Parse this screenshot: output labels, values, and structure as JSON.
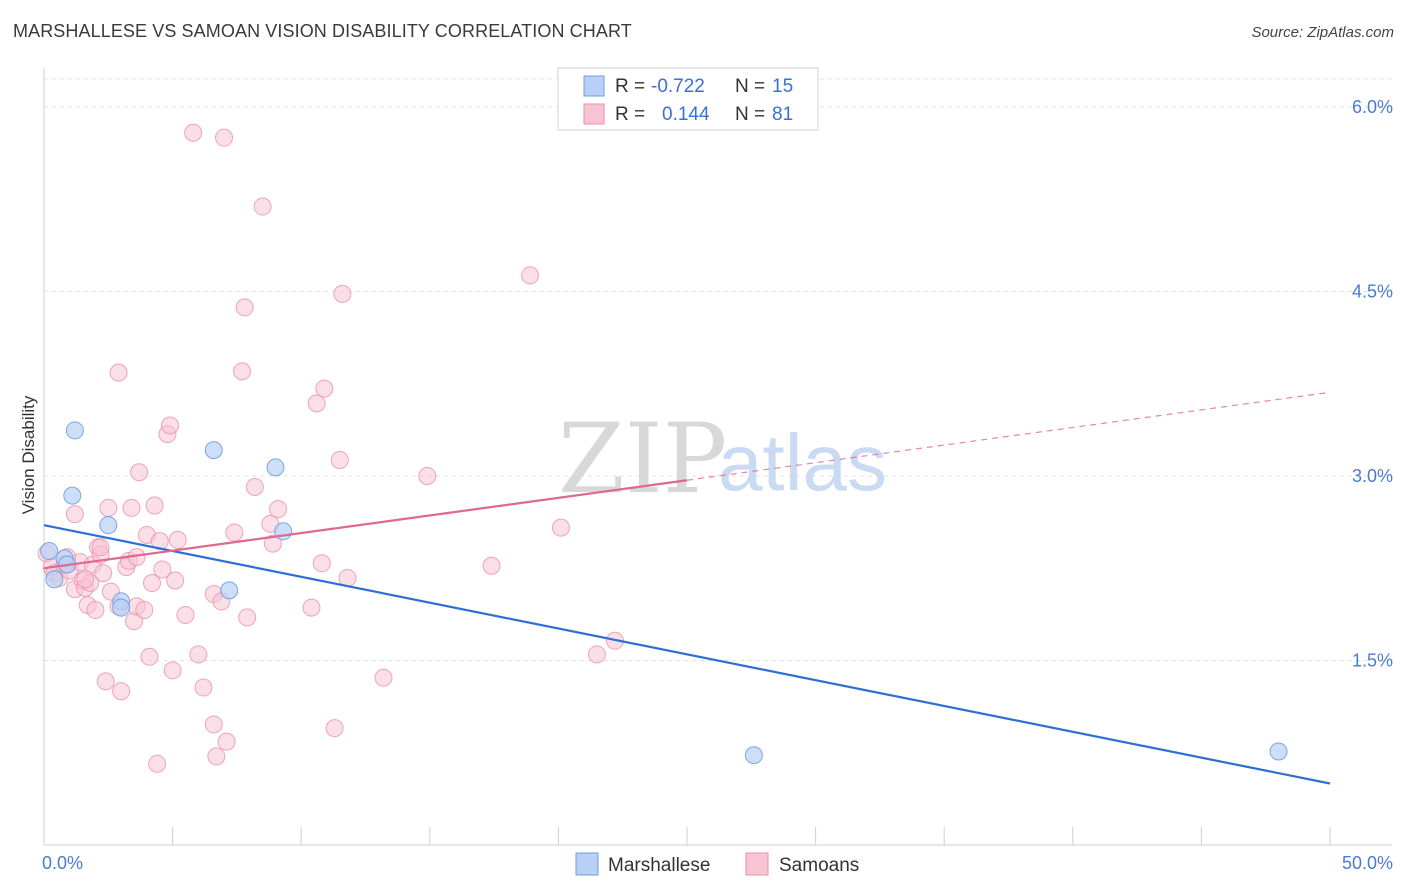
{
  "title": "MARSHALLESE VS SAMOAN VISION DISABILITY CORRELATION CHART",
  "source": "Source: ZipAtlas.com",
  "watermark": {
    "part1": "ZIP",
    "part2": "atlas"
  },
  "colors": {
    "marshallese_fill": "#b8d0f5",
    "marshallese_stroke": "#6f9ee0",
    "marshallese_line": "#2d6fd4",
    "samoan_fill": "#f8c4d4",
    "samoan_stroke": "#ea90ab",
    "samoan_line": "#e06792",
    "grid": "#e2e2e2",
    "tick_label": "#4a7bd0"
  },
  "legend": {
    "rows": [
      {
        "r_label": "R =",
        "r_value": "-0.722",
        "n_label": "N =",
        "n_value": "15"
      },
      {
        "r_label": "R =",
        "r_value": "0.144",
        "n_label": "N =",
        "n_value": "81"
      }
    ]
  },
  "bottom_legend": {
    "marshallese": "Marshallese",
    "samoans": "Samoans"
  },
  "chart_data": {
    "type": "scatter",
    "title": "MARSHALLESE VS SAMOAN VISION DISABILITY CORRELATION CHART",
    "xlabel": "",
    "ylabel": "Vision Disability",
    "xlim": [
      0,
      50
    ],
    "ylim": [
      0,
      6.3
    ],
    "x_tick_labels": [
      "0.0%",
      "50.0%"
    ],
    "y_ticks": [
      1.5,
      3.0,
      4.5,
      6.0
    ],
    "y_tick_labels": [
      "1.5%",
      "3.0%",
      "4.5%",
      "6.0%"
    ],
    "series": [
      {
        "name": "Marshallese",
        "r": -0.722,
        "n": 15,
        "points": [
          [
            0.2,
            2.39
          ],
          [
            0.4,
            2.16
          ],
          [
            0.8,
            2.33
          ],
          [
            0.9,
            2.28
          ],
          [
            1.1,
            2.84
          ],
          [
            1.2,
            3.37
          ],
          [
            2.5,
            2.6
          ],
          [
            3.0,
            1.98
          ],
          [
            6.6,
            3.21
          ],
          [
            7.2,
            2.07
          ],
          [
            9.0,
            3.07
          ],
          [
            9.3,
            2.55
          ],
          [
            27.6,
            0.73
          ],
          [
            48.0,
            0.76
          ],
          [
            3.0,
            1.93
          ]
        ],
        "trend": {
          "x": [
            0,
            50
          ],
          "y": [
            2.6,
            0.5
          ],
          "dashed_from": null
        }
      },
      {
        "name": "Samoans",
        "r": 0.144,
        "n": 81,
        "points": [
          [
            0.1,
            2.37
          ],
          [
            0.3,
            2.26
          ],
          [
            0.4,
            2.21
          ],
          [
            0.6,
            2.17
          ],
          [
            0.8,
            2.28
          ],
          [
            1.0,
            2.23
          ],
          [
            1.2,
            2.08
          ],
          [
            1.2,
            2.69
          ],
          [
            1.4,
            2.3
          ],
          [
            1.5,
            2.15
          ],
          [
            1.6,
            2.09
          ],
          [
            1.7,
            1.95
          ],
          [
            1.8,
            2.13
          ],
          [
            1.9,
            2.28
          ],
          [
            2.0,
            1.91
          ],
          [
            2.1,
            2.42
          ],
          [
            2.2,
            2.36
          ],
          [
            2.3,
            2.21
          ],
          [
            2.4,
            1.33
          ],
          [
            2.5,
            2.74
          ],
          [
            2.6,
            2.06
          ],
          [
            2.9,
            1.94
          ],
          [
            2.9,
            3.84
          ],
          [
            3.0,
            1.25
          ],
          [
            3.2,
            2.26
          ],
          [
            3.3,
            2.31
          ],
          [
            3.4,
            2.74
          ],
          [
            3.5,
            1.82
          ],
          [
            3.6,
            1.94
          ],
          [
            3.7,
            3.03
          ],
          [
            3.9,
            1.91
          ],
          [
            4.0,
            2.52
          ],
          [
            4.1,
            1.53
          ],
          [
            4.2,
            2.13
          ],
          [
            4.3,
            2.76
          ],
          [
            4.4,
            0.66
          ],
          [
            4.5,
            2.47
          ],
          [
            4.6,
            2.24
          ],
          [
            4.8,
            3.34
          ],
          [
            4.9,
            3.41
          ],
          [
            5.0,
            1.42
          ],
          [
            5.1,
            2.15
          ],
          [
            5.2,
            2.48
          ],
          [
            5.5,
            1.87
          ],
          [
            5.8,
            5.79
          ],
          [
            6.0,
            1.55
          ],
          [
            6.2,
            1.28
          ],
          [
            6.6,
            0.98
          ],
          [
            6.6,
            2.04
          ],
          [
            6.7,
            0.72
          ],
          [
            6.9,
            1.98
          ],
          [
            7.0,
            5.75
          ],
          [
            7.1,
            0.84
          ],
          [
            7.4,
            2.54
          ],
          [
            7.7,
            3.85
          ],
          [
            7.8,
            4.37
          ],
          [
            7.9,
            1.85
          ],
          [
            8.2,
            2.91
          ],
          [
            8.5,
            5.19
          ],
          [
            8.8,
            2.61
          ],
          [
            8.9,
            2.45
          ],
          [
            9.1,
            2.73
          ],
          [
            10.4,
            1.93
          ],
          [
            10.6,
            3.59
          ],
          [
            10.8,
            2.29
          ],
          [
            10.9,
            3.71
          ],
          [
            11.3,
            0.95
          ],
          [
            11.5,
            3.13
          ],
          [
            11.6,
            4.48
          ],
          [
            11.8,
            2.17
          ],
          [
            13.2,
            1.36
          ],
          [
            14.9,
            3.0
          ],
          [
            17.4,
            2.27
          ],
          [
            18.9,
            4.63
          ],
          [
            20.1,
            2.58
          ],
          [
            21.5,
            1.55
          ],
          [
            22.2,
            1.66
          ],
          [
            3.6,
            2.34
          ],
          [
            0.9,
            2.34
          ],
          [
            2.2,
            2.42
          ],
          [
            1.6,
            2.16
          ]
        ],
        "trend": {
          "x": [
            0,
            50
          ],
          "y": [
            2.25,
            3.68
          ],
          "dashed_from": 25.0
        }
      }
    ]
  }
}
